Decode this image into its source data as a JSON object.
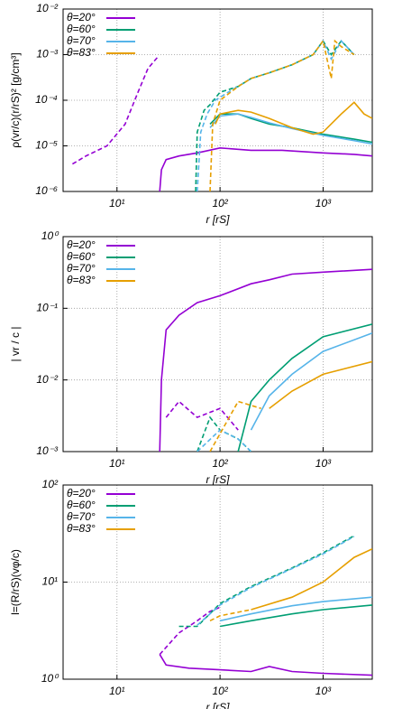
{
  "chart_data": [
    {
      "type": "line",
      "ylabel": "ρ(vr/c)(r/rS)² [g/cm³]",
      "xlabel": "r [rS]",
      "log_x": true,
      "log_y": true,
      "grid": true,
      "legend": "upper left",
      "xlim": [
        3,
        3000
      ],
      "ylim": [
        1e-06,
        0.01
      ],
      "xticks": [
        {
          "value": 10,
          "label": "10¹"
        },
        {
          "value": 100,
          "label": "10²"
        },
        {
          "value": 1000,
          "label": "10³"
        }
      ],
      "yticks": [
        {
          "value": 1e-06,
          "label": "10⁻⁶"
        },
        {
          "value": 1e-05,
          "label": "10⁻⁵"
        },
        {
          "value": 0.0001,
          "label": "10⁻⁴"
        },
        {
          "value": 0.001,
          "label": "10⁻³"
        },
        {
          "value": 0.01,
          "label": "10⁻²"
        }
      ],
      "series": [
        {
          "name": "θ=20°",
          "color": "#9400d3",
          "x": [
            26,
            27,
            30,
            40,
            60,
            100,
            200,
            400,
            1000,
            2000,
            3000
          ],
          "values": [
            1e-06,
            3e-06,
            5e-06,
            6e-06,
            7e-06,
            9e-06,
            8e-06,
            8e-06,
            7e-06,
            6.5e-06,
            6e-06
          ]
        },
        {
          "name": "θ=60°",
          "color": "#009e73",
          "x": [
            80,
            100,
            150,
            200,
            300,
            500,
            1000,
            2000,
            3000
          ],
          "values": [
            3e-05,
            5e-05,
            5e-05,
            4e-05,
            3e-05,
            2.5e-05,
            1.8e-05,
            1.4e-05,
            1.2e-05
          ]
        },
        {
          "name": "θ=70°",
          "color": "#56b4e9",
          "x": [
            80,
            100,
            150,
            200,
            300,
            500,
            1000,
            2000,
            3000
          ],
          "values": [
            2.5e-05,
            4.5e-05,
            5e-05,
            4.2e-05,
            3.2e-05,
            2.4e-05,
            1.7e-05,
            1.3e-05,
            1.1e-05
          ]
        },
        {
          "name": "θ=83°",
          "color": "#e69f00",
          "x": [
            90,
            100,
            150,
            200,
            300,
            500,
            800,
            1000,
            1500,
            2000,
            2500,
            3000
          ],
          "values": [
            3e-05,
            5e-05,
            6e-05,
            5.5e-05,
            4e-05,
            2.5e-05,
            1.8e-05,
            2e-05,
            5e-05,
            9e-05,
            5e-05,
            4e-05
          ]
        },
        {
          "color": "#9400d3",
          "style": "dashed",
          "x": [
            3.7,
            5,
            8,
            12,
            16,
            20,
            25
          ],
          "values": [
            4e-06,
            6e-06,
            1e-05,
            3e-05,
            0.00015,
            0.0005,
            0.0009
          ]
        },
        {
          "color": "#009e73",
          "style": "dashed",
          "x": [
            58,
            60,
            70,
            80,
            100,
            150,
            200,
            300,
            500,
            800,
            1000,
            1200,
            1500,
            2000
          ],
          "values": [
            1e-06,
            2e-05,
            6e-05,
            8e-05,
            0.00015,
            0.0002,
            0.0003,
            0.0004,
            0.0006,
            0.001,
            0.002,
            0.001,
            0.002,
            0.001
          ]
        },
        {
          "color": "#56b4e9",
          "style": "dashed",
          "x": [
            60,
            65,
            75,
            90,
            120,
            200,
            300,
            500,
            800,
            1000,
            1200,
            1500,
            2000
          ],
          "values": [
            1e-06,
            2e-05,
            5e-05,
            0.0001,
            0.00015,
            0.0003,
            0.0004,
            0.0006,
            0.001,
            0.002,
            0.0008,
            0.002,
            0.001
          ]
        },
        {
          "color": "#e69f00",
          "style": "dashed",
          "x": [
            80,
            85,
            100,
            150,
            200,
            300,
            500,
            800,
            1000,
            1200,
            1300,
            1500,
            2000
          ],
          "values": [
            1e-06,
            3e-05,
            0.0001,
            0.0002,
            0.0003,
            0.0004,
            0.0006,
            0.001,
            0.002,
            0.0003,
            0.002,
            0.0015,
            0.001
          ]
        }
      ]
    },
    {
      "type": "line",
      "ylabel": "| vr / c |",
      "xlabel": "r [rS]",
      "log_x": true,
      "log_y": true,
      "grid": true,
      "legend": "upper left",
      "xlim": [
        3,
        3000
      ],
      "ylim": [
        0.001,
        1
      ],
      "xticks": [
        {
          "value": 10,
          "label": "10¹"
        },
        {
          "value": 100,
          "label": "10²"
        },
        {
          "value": 1000,
          "label": "10³"
        }
      ],
      "yticks": [
        {
          "value": 0.001,
          "label": "10⁻³"
        },
        {
          "value": 0.01,
          "label": "10⁻²"
        },
        {
          "value": 0.1,
          "label": "10⁻¹"
        },
        {
          "value": 1,
          "label": "10⁰"
        }
      ],
      "series": [
        {
          "name": "θ=20°",
          "color": "#9400d3",
          "x": [
            26,
            27,
            30,
            40,
            60,
            100,
            200,
            300,
            500,
            1000,
            3000
          ],
          "values": [
            0.001,
            0.01,
            0.05,
            0.08,
            0.12,
            0.15,
            0.22,
            0.25,
            0.3,
            0.32,
            0.35
          ]
        },
        {
          "name": "θ=60°",
          "color": "#009e73",
          "x": [
            150,
            200,
            300,
            500,
            1000,
            3000
          ],
          "values": [
            0.001,
            0.005,
            0.01,
            0.02,
            0.04,
            0.06
          ]
        },
        {
          "name": "θ=70°",
          "color": "#56b4e9",
          "x": [
            200,
            300,
            500,
            1000,
            3000
          ],
          "values": [
            0.002,
            0.006,
            0.012,
            0.025,
            0.045
          ]
        },
        {
          "name": "θ=83°",
          "color": "#e69f00",
          "x": [
            300,
            500,
            1000,
            3000
          ],
          "values": [
            0.004,
            0.007,
            0.012,
            0.018
          ]
        },
        {
          "color": "#9400d3",
          "style": "dashed",
          "x": [
            30,
            40,
            60,
            100,
            150
          ],
          "values": [
            0.003,
            0.005,
            0.003,
            0.004,
            0.002
          ]
        },
        {
          "color": "#009e73",
          "style": "dashed",
          "x": [
            60,
            80,
            100,
            150,
            200
          ],
          "values": [
            0.001,
            0.003,
            0.002,
            0.0015,
            0.001
          ]
        },
        {
          "color": "#56b4e9",
          "style": "dashed",
          "x": [
            60,
            100,
            150,
            200
          ],
          "values": [
            0.001,
            0.002,
            0.0015,
            0.001
          ]
        },
        {
          "color": "#e69f00",
          "style": "dashed",
          "x": [
            80,
            150,
            250
          ],
          "values": [
            0.001,
            0.005,
            0.004
          ]
        }
      ]
    },
    {
      "type": "line",
      "ylabel": "l=(R/rS)(vφ/c)",
      "xlabel": "r [rS]",
      "log_x": true,
      "log_y": true,
      "grid": true,
      "legend": "upper left",
      "xlim": [
        3,
        3000
      ],
      "ylim": [
        1,
        100
      ],
      "xticks": [
        {
          "value": 10,
          "label": "10¹"
        },
        {
          "value": 100,
          "label": "10²"
        },
        {
          "value": 1000,
          "label": "10³"
        }
      ],
      "yticks": [
        {
          "value": 1,
          "label": "10⁰"
        },
        {
          "value": 10,
          "label": "10¹"
        },
        {
          "value": 100,
          "label": "10²"
        }
      ],
      "series": [
        {
          "name": "θ=20°",
          "color": "#9400d3",
          "x": [
            26,
            30,
            50,
            100,
            200,
            300,
            500,
            1000,
            3000
          ],
          "values": [
            1.8,
            1.4,
            1.3,
            1.25,
            1.2,
            1.35,
            1.2,
            1.15,
            1.1
          ]
        },
        {
          "name": "θ=60°",
          "color": "#009e73",
          "x": [
            100,
            200,
            500,
            1000,
            3000
          ],
          "values": [
            3.5,
            4,
            4.7,
            5.2,
            5.8
          ]
        },
        {
          "name": "θ=70°",
          "color": "#56b4e9",
          "x": [
            100,
            200,
            500,
            1000,
            3000
          ],
          "values": [
            4,
            4.7,
            5.7,
            6.3,
            7
          ]
        },
        {
          "name": "θ=83°",
          "color": "#e69f00",
          "x": [
            200,
            500,
            1000,
            2000,
            3000
          ],
          "values": [
            5.2,
            7,
            10,
            18,
            22
          ]
        },
        {
          "color": "#9400d3",
          "style": "dashed",
          "x": [
            26,
            40,
            60,
            80,
            100
          ],
          "values": [
            1.8,
            3,
            4,
            5,
            5.5
          ]
        },
        {
          "color": "#009e73",
          "style": "dashed",
          "x": [
            40,
            60,
            100,
            200,
            500,
            1000,
            2000
          ],
          "values": [
            3.5,
            3.5,
            6,
            9,
            14,
            20,
            30
          ]
        },
        {
          "color": "#56b4e9",
          "style": "dashed",
          "x": [
            60,
            100,
            200,
            500,
            1000,
            2000
          ],
          "values": [
            3.6,
            5.8,
            8.8,
            13.8,
            19.5,
            29.5
          ]
        },
        {
          "color": "#e69f00",
          "style": "dashed",
          "x": [
            80,
            100,
            200
          ],
          "values": [
            4,
            4.5,
            5.2
          ]
        }
      ]
    }
  ]
}
